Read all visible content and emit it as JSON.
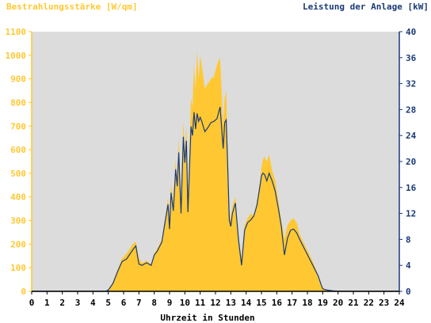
{
  "chart_data": {
    "type": "area",
    "title_left": "Bestrahlungsstärke [W/qm]",
    "title_right": "Leistung der Anlage [kW]",
    "xlabel": "Uhrzeit in Stunden",
    "x_ticks": [
      "0",
      "1",
      "2",
      "3",
      "4",
      "5",
      "6",
      "7",
      "8",
      "9",
      "10",
      "11",
      "12",
      "13",
      "14",
      "15",
      "16",
      "17",
      "18",
      "19",
      "20",
      "21",
      "22",
      "23",
      "24"
    ],
    "y_left_ticks": [
      "0",
      "100",
      "200",
      "300",
      "400",
      "500",
      "600",
      "700",
      "800",
      "900",
      "1000",
      "1100"
    ],
    "y_right_ticks": [
      "0",
      "4",
      "8",
      "12",
      "16",
      "20",
      "24",
      "28",
      "32",
      "36",
      "40"
    ],
    "xlim": [
      0,
      24
    ],
    "ylim_left": [
      0,
      1100
    ],
    "ylim_right": [
      0,
      40
    ],
    "grid": false,
    "colors": {
      "irradiance": "#ffc832",
      "power": "#1a3a78",
      "plot_bg": "#dcdcdc",
      "left_axis_text": "#ffc832",
      "right_axis_text": "#1a3a78"
    },
    "series": [
      {
        "axis": "left",
        "x": [
          0,
          4.8,
          5.0,
          5.3,
          5.6,
          5.9,
          6.2,
          6.6,
          6.8,
          7.0,
          7.2,
          7.5,
          7.8,
          8.0,
          8.2,
          8.5,
          8.7,
          8.9,
          9.0,
          9.1,
          9.25,
          9.4,
          9.5,
          9.6,
          9.75,
          9.9,
          10.0,
          10.1,
          10.2,
          10.4,
          10.5,
          10.6,
          10.7,
          10.8,
          10.9,
          11.0,
          11.1,
          11.3,
          11.5,
          11.7,
          11.9,
          12.1,
          12.3,
          12.5,
          12.6,
          12.7,
          12.8,
          12.9,
          13.0,
          13.1,
          13.3,
          13.5,
          13.7,
          13.9,
          14.1,
          14.3,
          14.5,
          14.7,
          14.9,
          15.0,
          15.1,
          15.2,
          15.35,
          15.5,
          15.7,
          15.9,
          16.1,
          16.3,
          16.5,
          16.7,
          16.9,
          17.1,
          17.3,
          17.5,
          17.8,
          18.1,
          18.4,
          18.7,
          18.9,
          19.0,
          19.1,
          19.3,
          19.6,
          20.0,
          20.5,
          24
        ],
        "values": [
          0,
          0,
          5,
          40,
          90,
          140,
          160,
          200,
          210,
          140,
          120,
          130,
          115,
          160,
          180,
          220,
          300,
          400,
          280,
          450,
          380,
          560,
          480,
          650,
          350,
          720,
          600,
          700,
          350,
          820,
          780,
          960,
          850,
          1020,
          900,
          1000,
          960,
          860,
          880,
          900,
          910,
          960,
          990,
          700,
          820,
          850,
          580,
          350,
          300,
          360,
          400,
          230,
          140,
          280,
          310,
          330,
          320,
          380,
          460,
          520,
          560,
          570,
          550,
          580,
          510,
          470,
          380,
          300,
          220,
          280,
          300,
          310,
          290,
          240,
          200,
          160,
          120,
          70,
          30,
          15,
          10,
          5,
          2,
          0,
          0,
          0
        ]
      },
      {
        "axis": "right",
        "x": [
          0,
          4.8,
          5.0,
          5.3,
          5.6,
          5.9,
          6.2,
          6.6,
          6.8,
          7.0,
          7.2,
          7.5,
          7.8,
          8.0,
          8.2,
          8.5,
          8.7,
          8.9,
          9.0,
          9.1,
          9.25,
          9.4,
          9.5,
          9.6,
          9.75,
          9.9,
          10.0,
          10.1,
          10.2,
          10.4,
          10.5,
          10.6,
          10.7,
          10.8,
          10.9,
          11.0,
          11.1,
          11.3,
          11.5,
          11.7,
          11.9,
          12.1,
          12.3,
          12.5,
          12.6,
          12.7,
          12.8,
          12.9,
          13.0,
          13.1,
          13.3,
          13.5,
          13.7,
          13.9,
          14.1,
          14.3,
          14.5,
          14.7,
          14.9,
          15.0,
          15.1,
          15.2,
          15.35,
          15.5,
          15.7,
          15.9,
          16.1,
          16.3,
          16.5,
          16.7,
          16.9,
          17.1,
          17.3,
          17.5,
          17.8,
          18.1,
          18.4,
          18.7,
          18.9,
          19.0,
          19.1,
          19.3,
          19.6,
          20.0,
          20.5,
          24
        ],
        "values": [
          0,
          0,
          0.2,
          1.2,
          3.0,
          4.6,
          5.0,
          6.4,
          7.0,
          4.2,
          4.0,
          4.4,
          4.0,
          5.6,
          6.2,
          7.6,
          10.6,
          13.4,
          9.6,
          15.2,
          12.4,
          18.8,
          16.2,
          21.4,
          12.0,
          23.8,
          19.8,
          23.2,
          12.2,
          25.4,
          24.0,
          27.6,
          25.0,
          27.4,
          26.2,
          26.8,
          26.2,
          24.6,
          25.2,
          26.0,
          26.2,
          26.6,
          28.4,
          22.0,
          26.0,
          26.4,
          19.0,
          11.0,
          10.0,
          12.0,
          13.6,
          8.0,
          4.0,
          9.4,
          10.6,
          11.0,
          11.6,
          13.2,
          16.2,
          17.8,
          18.2,
          18.0,
          17.0,
          18.2,
          17.0,
          15.4,
          12.8,
          10.0,
          5.6,
          8.2,
          9.4,
          9.6,
          9.0,
          8.0,
          6.6,
          5.2,
          3.8,
          2.4,
          1.0,
          0.4,
          0.3,
          0.2,
          0.1,
          0,
          0,
          0
        ]
      }
    ]
  }
}
